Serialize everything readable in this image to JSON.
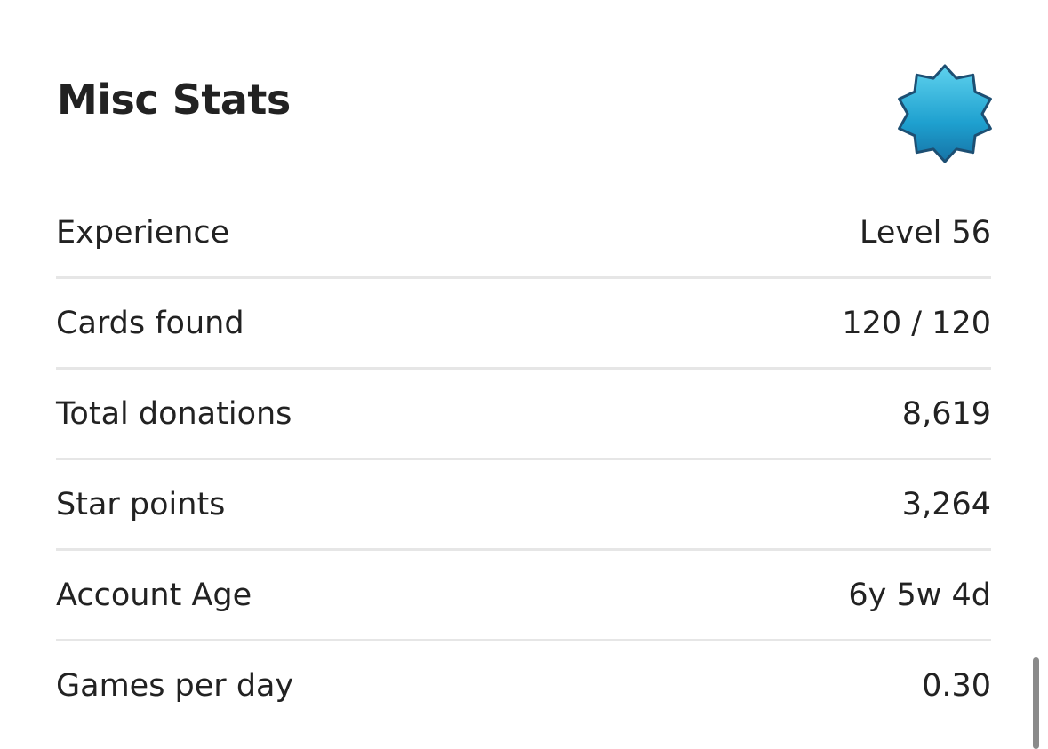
{
  "header": {
    "title": "Misc Stats"
  },
  "rows": [
    {
      "label": "Experience",
      "value": "Level 56"
    },
    {
      "label": "Cards found",
      "value": "120 / 120"
    },
    {
      "label": "Total donations",
      "value": "8,619"
    },
    {
      "label": "Star points",
      "value": "3,264"
    },
    {
      "label": "Account Age",
      "value": "6y 5w 4d"
    },
    {
      "label": "Games per day",
      "value": "0.30"
    }
  ]
}
